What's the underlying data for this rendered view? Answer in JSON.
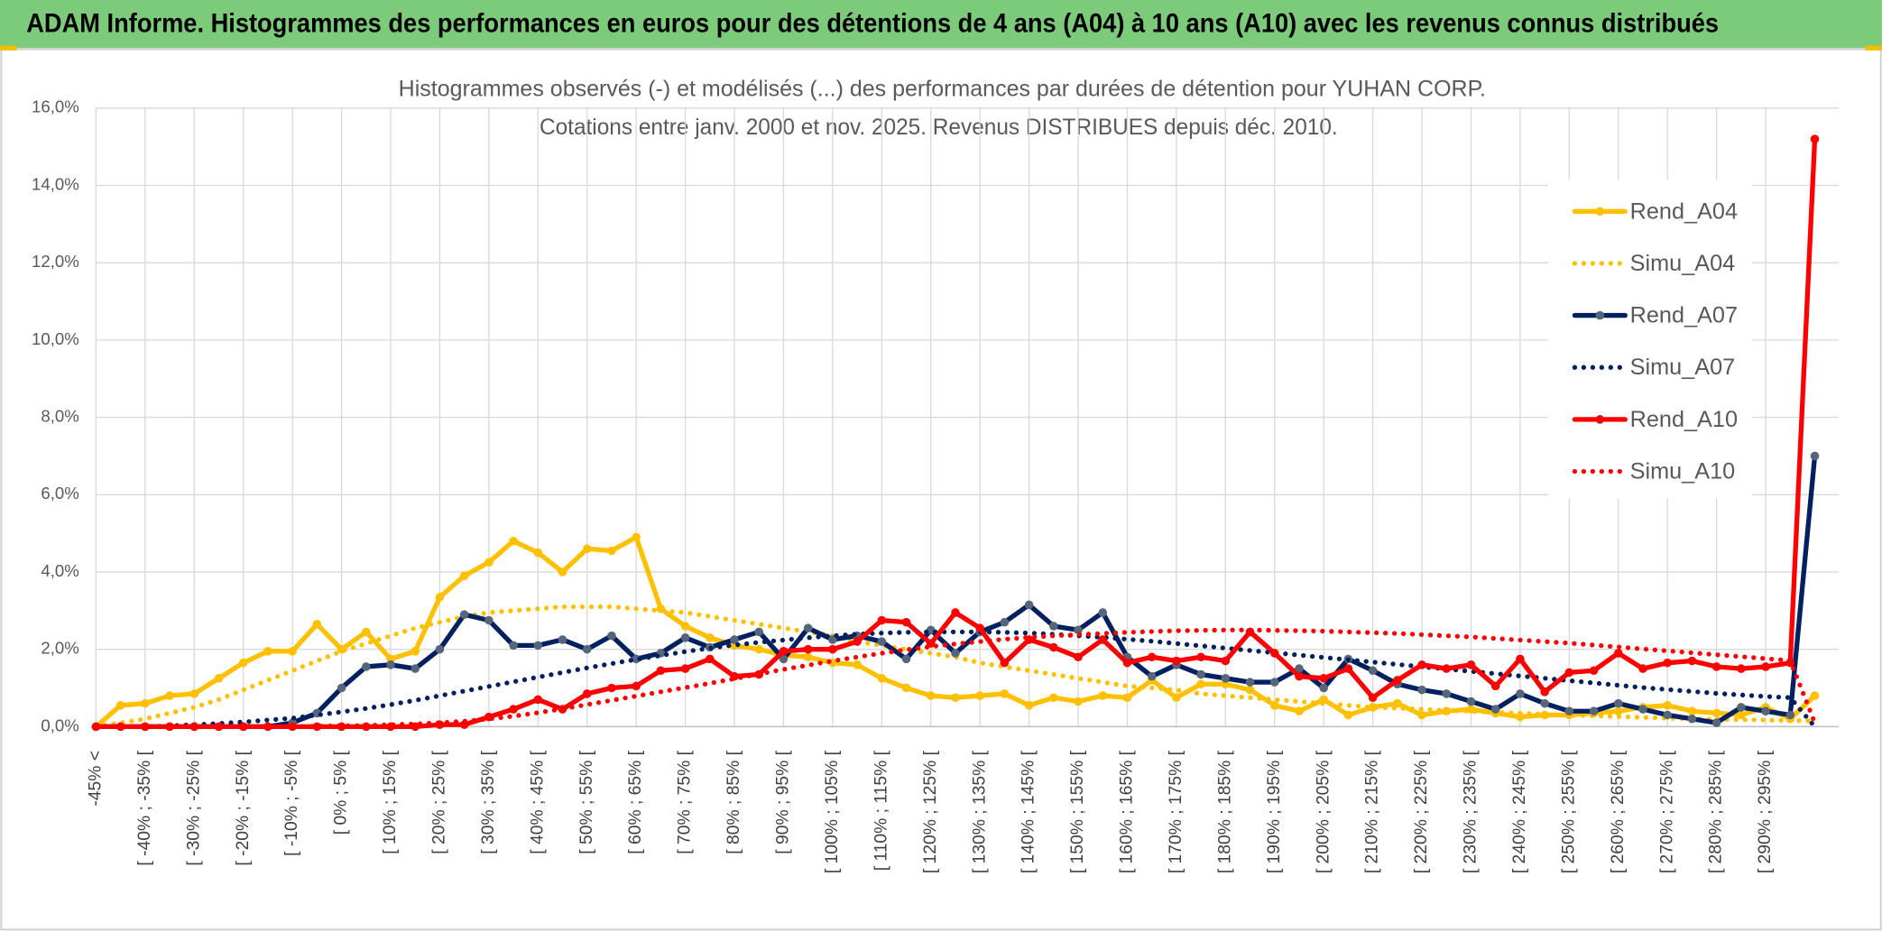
{
  "header": {
    "title": "ADAM Informe. Histogrammes des performances en euros pour des détentions de 4 ans (A04) à 10 ans (A10) avec les revenus connus distribués"
  },
  "chart_data": {
    "type": "line",
    "title": "Histogrammes observés (-) et modélisés (...) des performances par durées de détention pour YUHAN CORP.",
    "subtitle": "Cotations entre janv. 2000 et nov. 2025. Revenus DISTRIBUES depuis déc. 2010.",
    "categories": [
      "-45% <",
      null,
      "[ -40% ; -35% [",
      null,
      "[ -30% ; -25% [",
      null,
      "[ -20% ; -15% [",
      null,
      "[ -10% ; -5% [",
      null,
      "[ 0% ; 5% [",
      null,
      "[ 10% ; 15% [",
      null,
      "[ 20% ; 25% [",
      null,
      "[ 30% ; 35% [",
      null,
      "[ 40% ; 45% [",
      null,
      "[ 50% ; 55% [",
      null,
      "[ 60% ; 65% [",
      null,
      "[ 70% ; 75% [",
      null,
      "[ 80% ; 85% [",
      null,
      "[ 90% ; 95% [",
      null,
      "[ 100% ; 105% [",
      null,
      "[ 110% ; 115% [",
      null,
      "[ 120% ; 125% [",
      null,
      "[ 130% ; 135% [",
      null,
      "[ 140% ; 145% [",
      null,
      "[ 150% ; 155% [",
      null,
      "[ 160% ; 165% [",
      null,
      "[ 170% ; 175% [",
      null,
      "[ 180% ; 185% [",
      null,
      "[ 190% ; 195% [",
      null,
      "[ 200% ; 205% [",
      null,
      "[ 210% ; 215% [",
      null,
      "[ 220% ; 225% [",
      null,
      "[ 230% ; 235% [",
      null,
      "[ 240% ; 245% [",
      null,
      "[ 250% ; 255% [",
      null,
      "[ 260% ; 265% [",
      null,
      "[ 270% ; 275% [",
      null,
      "[ 280% ; 285% [",
      null,
      "[ 290% ; 295% [",
      null,
      null
    ],
    "series": [
      {
        "name": "Rend_A04",
        "color": "#ffc000",
        "line_style": "solid",
        "marker_color": "#ffc000",
        "values": [
          0,
          0.55,
          0.6,
          0.8,
          0.85,
          1.25,
          1.65,
          1.95,
          1.95,
          2.65,
          2.0,
          2.45,
          1.75,
          1.95,
          3.35,
          3.9,
          4.25,
          4.8,
          4.5,
          4.0,
          4.6,
          4.55,
          4.9,
          3.05,
          2.6,
          2.3,
          2.1,
          2.0,
          1.85,
          1.8,
          1.65,
          1.6,
          1.25,
          1.0,
          0.8,
          0.75,
          0.8,
          0.85,
          0.55,
          0.75,
          0.65,
          0.8,
          0.75,
          1.2,
          0.75,
          1.1,
          1.1,
          0.95,
          0.55,
          0.4,
          0.7,
          0.3,
          0.5,
          0.6,
          0.3,
          0.4,
          0.45,
          0.35,
          0.25,
          0.3,
          0.3,
          0.35,
          0.4,
          0.5,
          0.55,
          0.4,
          0.35,
          0.3,
          0.5,
          0.2,
          0.8
        ]
      },
      {
        "name": "Simu_A04",
        "color": "#ffc000",
        "line_style": "dotted",
        "values": [
          0,
          0.1,
          0.2,
          0.35,
          0.5,
          0.7,
          0.95,
          1.2,
          1.45,
          1.7,
          1.95,
          2.15,
          2.35,
          2.55,
          2.7,
          2.85,
          2.95,
          3.0,
          3.05,
          3.1,
          3.1,
          3.1,
          3.05,
          3.0,
          2.95,
          2.85,
          2.75,
          2.65,
          2.55,
          2.45,
          2.35,
          2.2,
          2.1,
          2.0,
          1.9,
          1.8,
          1.65,
          1.55,
          1.45,
          1.35,
          1.25,
          1.15,
          1.05,
          1.0,
          0.95,
          0.85,
          0.8,
          0.75,
          0.7,
          0.65,
          0.6,
          0.55,
          0.5,
          0.48,
          0.45,
          0.42,
          0.4,
          0.37,
          0.35,
          0.32,
          0.3,
          0.28,
          0.26,
          0.24,
          0.22,
          0.2,
          0.19,
          0.18,
          0.17,
          0.16,
          0.15
        ]
      },
      {
        "name": "Rend_A07",
        "color": "#002060",
        "line_style": "solid",
        "marker_color": "#56657a",
        "values": [
          0,
          0,
          0,
          0,
          0,
          0,
          0,
          0,
          0.1,
          0.35,
          1.0,
          1.55,
          1.6,
          1.5,
          2.0,
          2.9,
          2.75,
          2.1,
          2.1,
          2.25,
          2.0,
          2.35,
          1.75,
          1.9,
          2.3,
          2.05,
          2.25,
          2.45,
          1.75,
          2.55,
          2.25,
          2.35,
          2.2,
          1.75,
          2.5,
          1.9,
          2.45,
          2.7,
          3.15,
          2.6,
          2.5,
          2.95,
          1.8,
          1.3,
          1.6,
          1.35,
          1.25,
          1.15,
          1.15,
          1.5,
          1.0,
          1.75,
          1.45,
          1.1,
          0.95,
          0.85,
          0.65,
          0.45,
          0.85,
          0.6,
          0.4,
          0.4,
          0.6,
          0.45,
          0.3,
          0.2,
          0.1,
          0.5,
          0.4,
          0.3,
          7.0
        ]
      },
      {
        "name": "Simu_A07",
        "color": "#002060",
        "line_style": "dotted",
        "values": [
          0,
          0,
          0,
          0.02,
          0.05,
          0.08,
          0.12,
          0.17,
          0.22,
          0.3,
          0.38,
          0.47,
          0.57,
          0.68,
          0.8,
          0.92,
          1.04,
          1.16,
          1.28,
          1.4,
          1.52,
          1.63,
          1.74,
          1.84,
          1.94,
          2.03,
          2.11,
          2.18,
          2.24,
          2.3,
          2.35,
          2.39,
          2.42,
          2.44,
          2.45,
          2.45,
          2.45,
          2.44,
          2.42,
          2.39,
          2.35,
          2.31,
          2.26,
          2.21,
          2.15,
          2.09,
          2.03,
          1.97,
          1.91,
          1.85,
          1.79,
          1.73,
          1.67,
          1.61,
          1.55,
          1.49,
          1.43,
          1.37,
          1.31,
          1.25,
          1.19,
          1.13,
          1.07,
          1.01,
          0.96,
          0.91,
          0.86,
          0.82,
          0.78,
          0.75,
          0
        ]
      },
      {
        "name": "Rend_A10",
        "color": "#ff0000",
        "line_style": "solid",
        "marker_color": "#ff0000",
        "values": [
          0,
          0,
          0,
          0,
          0,
          0,
          0,
          0,
          0,
          0,
          0,
          0,
          0,
          0,
          0.05,
          0.05,
          0.25,
          0.45,
          0.7,
          0.45,
          0.85,
          1.0,
          1.05,
          1.45,
          1.5,
          1.75,
          1.3,
          1.35,
          1.95,
          2.0,
          2.0,
          2.2,
          2.75,
          2.7,
          2.15,
          2.95,
          2.55,
          1.65,
          2.25,
          2.05,
          1.8,
          2.25,
          1.65,
          1.8,
          1.7,
          1.8,
          1.7,
          2.45,
          1.9,
          1.3,
          1.25,
          1.5,
          0.75,
          1.2,
          1.6,
          1.5,
          1.6,
          1.05,
          1.75,
          0.9,
          1.4,
          1.45,
          1.9,
          1.5,
          1.65,
          1.7,
          1.55,
          1.5,
          1.55,
          1.65,
          15.2
        ]
      },
      {
        "name": "Simu_A10",
        "color": "#ff0000",
        "line_style": "dotted",
        "values": [
          0,
          0,
          0,
          0,
          0,
          0,
          0,
          0,
          0,
          0.01,
          0.02,
          0.03,
          0.05,
          0.07,
          0.1,
          0.14,
          0.2,
          0.27,
          0.36,
          0.46,
          0.57,
          0.68,
          0.79,
          0.9,
          1.01,
          1.12,
          1.24,
          1.36,
          1.48,
          1.59,
          1.7,
          1.8,
          1.9,
          1.99,
          2.07,
          2.14,
          2.2,
          2.26,
          2.31,
          2.35,
          2.38,
          2.41,
          2.44,
          2.46,
          2.48,
          2.49,
          2.5,
          2.5,
          2.49,
          2.48,
          2.47,
          2.45,
          2.43,
          2.41,
          2.38,
          2.35,
          2.32,
          2.28,
          2.24,
          2.2,
          2.16,
          2.11,
          2.06,
          2.01,
          1.96,
          1.91,
          1.86,
          1.81,
          1.76,
          1.71,
          0.1
        ]
      }
    ],
    "ylim": [
      0,
      16
    ],
    "yticks": [
      {
        "value": 0,
        "label": "0,0%"
      },
      {
        "value": 2,
        "label": "2,0%"
      },
      {
        "value": 4,
        "label": "4,0%"
      },
      {
        "value": 6,
        "label": "6,0%"
      },
      {
        "value": 8,
        "label": "8,0%"
      },
      {
        "value": 10,
        "label": "10,0%"
      },
      {
        "value": 12,
        "label": "12,0%"
      },
      {
        "value": 14,
        "label": "14,0%"
      },
      {
        "value": 16,
        "label": "16,0%"
      }
    ],
    "grid": true,
    "legend": "upper right"
  }
}
